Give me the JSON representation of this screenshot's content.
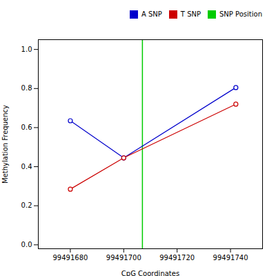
{
  "chart_data": {
    "type": "line",
    "xlabel": "CpG Coordinates",
    "ylabel": "Methylation Frequency",
    "series": [
      {
        "name": "A SNP",
        "color": "#0000cc",
        "marker": "circle",
        "x": [
          99491680,
          99491700,
          99491742
        ],
        "values": [
          0.635,
          0.445,
          0.805
        ]
      },
      {
        "name": "T SNP",
        "color": "#cc0000",
        "marker": "circle",
        "x": [
          99491680,
          99491700,
          99491742
        ],
        "values": [
          0.285,
          0.445,
          0.72
        ]
      },
      {
        "name": "SNP Position",
        "color": "#00cc00",
        "type": "vline",
        "x": [
          99491707
        ]
      }
    ],
    "xlim": [
      99491668,
      99491752
    ],
    "ylim": [
      -0.02,
      1.05
    ],
    "xticks": [
      99491680,
      99491700,
      99491720,
      99491740
    ],
    "yticks": [
      {
        "value": 0.0,
        "label": "0.0"
      },
      0.2,
      0.4,
      0.6,
      0.8,
      {
        "value": 1.0,
        "label": "1.0"
      }
    ],
    "grid": false,
    "legend": "right"
  }
}
